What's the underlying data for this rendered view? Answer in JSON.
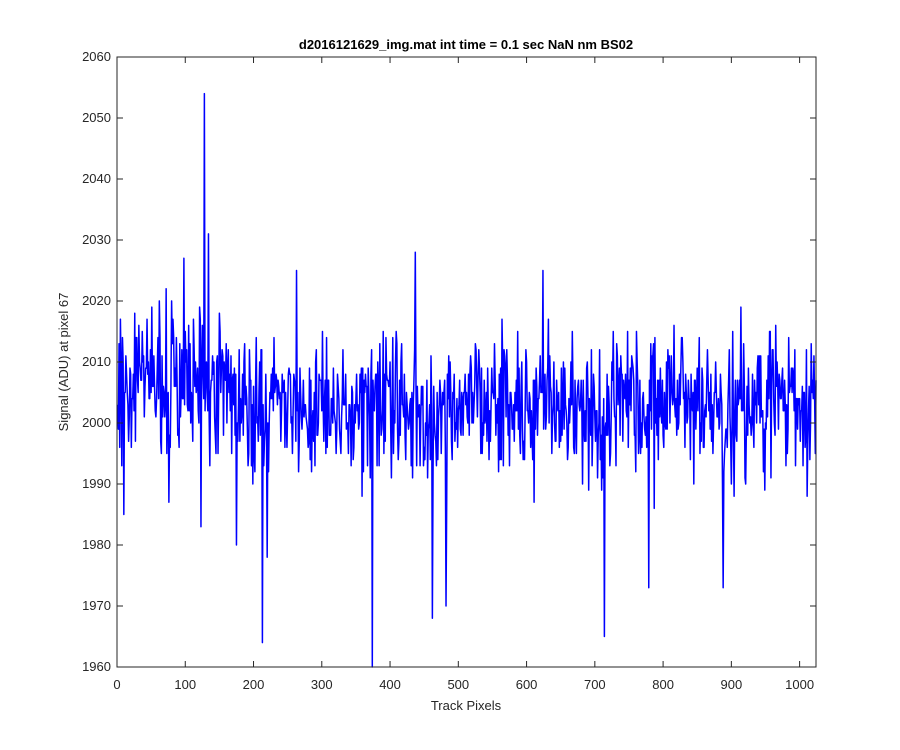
{
  "chart_data": {
    "type": "line",
    "title": "d2016121629_img.mat int time = 0.1 sec  NaN nm BS02",
    "xlabel": "Track Pixels",
    "ylabel": "Signal (ADU) at pixel 67",
    "xlim": [
      0,
      1024
    ],
    "ylim": [
      1960,
      2060
    ],
    "xticks": [
      "0",
      "100",
      "200",
      "300",
      "400",
      "500",
      "600",
      "700",
      "800",
      "900",
      "1000"
    ],
    "yticks": [
      "1960",
      "1970",
      "1980",
      "1990",
      "2000",
      "2010",
      "2020",
      "2030",
      "2040",
      "2050",
      "2060"
    ],
    "grid": false,
    "legend": "none",
    "series": [
      {
        "color": "#0000ff",
        "x_start": 1,
        "x_step": 1,
        "point_count": 1024,
        "mean": 2003,
        "std": 6,
        "notable_points": [
          {
            "x": 128,
            "y": 2054
          },
          {
            "x": 134,
            "y": 2031
          },
          {
            "x": 98,
            "y": 2027
          },
          {
            "x": 437,
            "y": 2028
          },
          {
            "x": 263,
            "y": 2025
          },
          {
            "x": 624,
            "y": 2025
          },
          {
            "x": 10,
            "y": 1985
          },
          {
            "x": 123,
            "y": 1983
          },
          {
            "x": 175,
            "y": 1980
          },
          {
            "x": 213,
            "y": 1964
          },
          {
            "x": 374,
            "y": 1960
          },
          {
            "x": 462,
            "y": 1968
          },
          {
            "x": 482,
            "y": 1970
          },
          {
            "x": 714,
            "y": 1965
          },
          {
            "x": 779,
            "y": 1973
          },
          {
            "x": 888,
            "y": 1973
          }
        ]
      }
    ]
  },
  "colors": {
    "line": "#0000ff",
    "axes": "#262626",
    "background": "#ffffff"
  }
}
